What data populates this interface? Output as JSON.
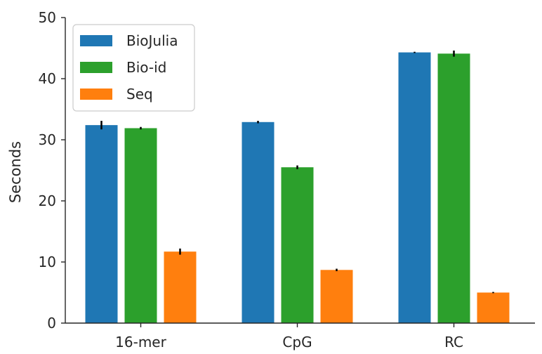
{
  "chart_data": {
    "type": "bar",
    "title": "",
    "xlabel": "",
    "ylabel": "Seconds",
    "ylim": [
      0,
      50
    ],
    "yticks": [
      0,
      10,
      20,
      30,
      40,
      50
    ],
    "categories": [
      "16-mer",
      "CpG",
      "RC"
    ],
    "series": [
      {
        "name": "BioJulia",
        "color": "#1f77b4",
        "values": [
          32.4,
          32.9,
          44.3
        ],
        "errors": [
          0.7,
          0.2,
          0.1
        ]
      },
      {
        "name": "Bio-id",
        "color": "#2ca02c",
        "values": [
          31.9,
          25.5,
          44.1
        ],
        "errors": [
          0.2,
          0.3,
          0.5
        ]
      },
      {
        "name": "Seq",
        "color": "#ff7f0e",
        "values": [
          11.7,
          8.7,
          5.0
        ],
        "errors": [
          0.5,
          0.2,
          0.1
        ]
      }
    ],
    "legend_position": "top-left",
    "grid": false
  }
}
